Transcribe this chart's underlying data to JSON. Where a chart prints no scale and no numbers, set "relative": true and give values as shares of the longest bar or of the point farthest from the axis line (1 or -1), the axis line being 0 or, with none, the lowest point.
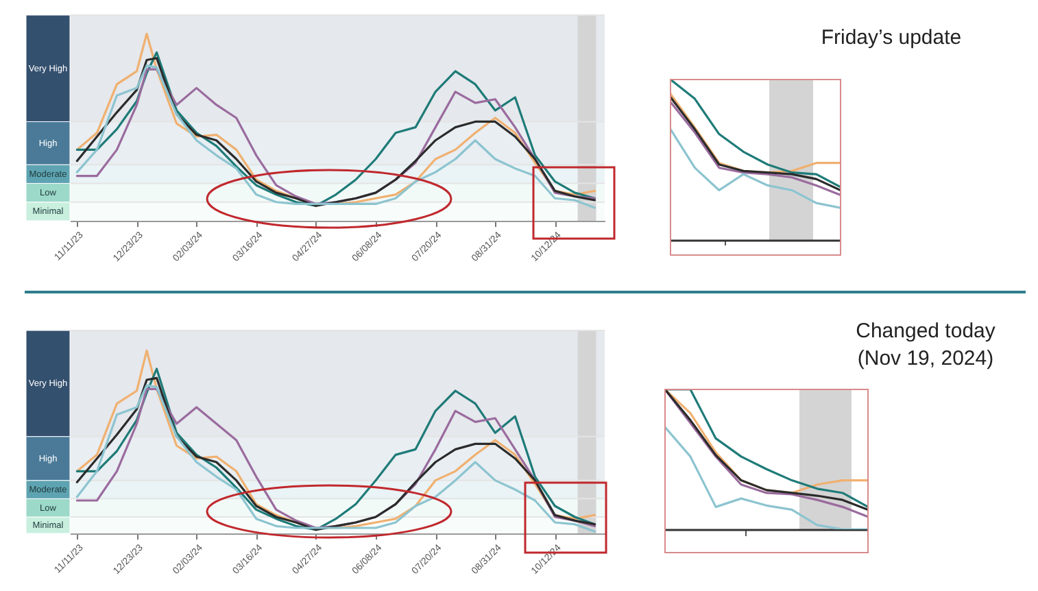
{
  "chart_data": [
    {
      "type": "line",
      "relative": true,
      "x": [
        "2023-11-11",
        "2023-11-25",
        "2023-12-09",
        "2023-12-23",
        "2023-12-30",
        "2024-01-06",
        "2024-01-20",
        "2024-02-03",
        "2024-02-17",
        "2024-03-02",
        "2024-03-16",
        "2024-03-30",
        "2024-04-13",
        "2024-04-27",
        "2024-05-11",
        "2024-05-25",
        "2024-06-08",
        "2024-06-22",
        "2024-07-06",
        "2024-07-20",
        "2024-08-03",
        "2024-08-17",
        "2024-08-31",
        "2024-09-14",
        "2024-09-28",
        "2024-10-12",
        "2024-10-26",
        "2024-11-09"
      ],
      "xlim": [
        "2023-11-06",
        "2024-11-16"
      ],
      "xticks": [
        {
          "value": "2023-11-11",
          "label": "11/11/23"
        },
        {
          "value": "2023-12-23",
          "label": "12/23/23"
        },
        {
          "value": "2024-02-03",
          "label": "02/03/24"
        },
        {
          "value": "2024-03-16",
          "label": "03/16/24"
        },
        {
          "value": "2024-04-27",
          "label": "04/27/24"
        },
        {
          "value": "2024-06-08",
          "label": "06/08/24"
        },
        {
          "value": "2024-07-20",
          "label": "07/20/24"
        },
        {
          "value": "2024-08-31",
          "label": "08/31/24"
        },
        {
          "value": "2024-10-12",
          "label": "10/12/24"
        }
      ],
      "series": [
        {
          "color": "#f0b070",
          "values": [
            0.38,
            0.47,
            0.73,
            0.8,
            1.0,
            0.81,
            0.52,
            0.45,
            0.46,
            0.38,
            0.22,
            0.16,
            0.12,
            0.09,
            0.09,
            0.1,
            0.12,
            0.14,
            0.21,
            0.33,
            0.38,
            0.47,
            0.55,
            0.47,
            0.31,
            0.16,
            0.14,
            0.16
          ]
        },
        {
          "color": "#1e7b78",
          "values": [
            0.38,
            0.38,
            0.49,
            0.64,
            0.79,
            0.9,
            0.59,
            0.47,
            0.4,
            0.29,
            0.19,
            0.14,
            0.1,
            0.08,
            0.14,
            0.22,
            0.33,
            0.47,
            0.5,
            0.69,
            0.8,
            0.73,
            0.59,
            0.66,
            0.35,
            0.21,
            0.15,
            0.12
          ]
        },
        {
          "color": "#9a6b9e",
          "values": [
            0.24,
            0.24,
            0.38,
            0.62,
            0.81,
            0.81,
            0.62,
            0.71,
            0.62,
            0.55,
            0.35,
            0.19,
            0.13,
            0.09,
            0.1,
            0.12,
            0.15,
            0.22,
            0.31,
            0.5,
            0.69,
            0.63,
            0.65,
            0.5,
            0.33,
            0.15,
            0.13,
            0.12
          ]
        },
        {
          "color": "#2b2b2b",
          "values": [
            0.32,
            0.45,
            0.58,
            0.7,
            0.86,
            0.87,
            0.57,
            0.46,
            0.43,
            0.33,
            0.21,
            0.15,
            0.12,
            0.08,
            0.1,
            0.12,
            0.15,
            0.22,
            0.32,
            0.43,
            0.5,
            0.53,
            0.53,
            0.45,
            0.33,
            0.16,
            0.13,
            0.11
          ]
        },
        {
          "color": "#8cc4d0",
          "values": [
            0.26,
            0.38,
            0.67,
            0.71,
            0.83,
            0.82,
            0.57,
            0.43,
            0.35,
            0.28,
            0.14,
            0.1,
            0.09,
            0.09,
            0.09,
            0.09,
            0.09,
            0.12,
            0.21,
            0.26,
            0.33,
            0.43,
            0.33,
            0.28,
            0.24,
            0.12,
            0.11,
            0.07
          ]
        }
      ],
      "bands": [
        {
          "axis": "y",
          "from": 0,
          "to": 0.1,
          "label": "Minimal",
          "color": "#c9efdf"
        },
        {
          "axis": "y",
          "from": 0.1,
          "to": 0.2,
          "label": "Low",
          "color": "#9cd9c9"
        },
        {
          "axis": "y",
          "from": 0.2,
          "to": 0.3,
          "label": "Moderate",
          "color": "#5ea3b1"
        },
        {
          "axis": "y",
          "from": 0.3,
          "to": 0.53,
          "label": "High",
          "color": "#4a7a98"
        },
        {
          "axis": "y",
          "from": 0.53,
          "to": 1.1,
          "label": "Very High",
          "color": "#34506f"
        },
        {
          "axis": "x",
          "from": "2024-10-28",
          "to": "2024-11-10",
          "color": "#d4d4d4"
        }
      ]
    },
    {
      "type": "line",
      "title": "Friday’s update",
      "relative": true,
      "tick_labels": false,
      "categories": [
        null,
        null,
        null,
        null,
        null,
        null,
        null,
        null
      ],
      "series": [
        {
          "color": "#f0b070",
          "values": [
            0.91,
            0.7,
            0.48,
            0.43,
            0.42,
            0.43,
            0.48,
            0.48
          ]
        },
        {
          "color": "#1e7b78",
          "values": [
            1.0,
            0.88,
            0.66,
            0.55,
            0.47,
            0.42,
            0.41,
            0.33
          ]
        },
        {
          "color": "#9a6b9e",
          "values": [
            0.86,
            0.67,
            0.45,
            0.42,
            0.41,
            0.39,
            0.34,
            0.28
          ]
        },
        {
          "color": "#2b2b2b",
          "values": [
            0.89,
            0.69,
            0.47,
            0.43,
            0.42,
            0.41,
            0.38,
            0.31
          ]
        },
        {
          "color": "#8cc4d0",
          "values": [
            0.69,
            0.45,
            0.31,
            0.41,
            0.34,
            0.31,
            0.23,
            0.2
          ]
        }
      ]
    },
    {
      "type": "line",
      "relative": true,
      "x": [
        "2023-11-11",
        "2023-11-25",
        "2023-12-09",
        "2023-12-23",
        "2023-12-30",
        "2024-01-06",
        "2024-01-20",
        "2024-02-03",
        "2024-02-17",
        "2024-03-02",
        "2024-03-16",
        "2024-03-30",
        "2024-04-13",
        "2024-04-27",
        "2024-05-11",
        "2024-05-25",
        "2024-06-08",
        "2024-06-22",
        "2024-07-06",
        "2024-07-20",
        "2024-08-03",
        "2024-08-17",
        "2024-08-31",
        "2024-09-14",
        "2024-09-28",
        "2024-10-12",
        "2024-10-26",
        "2024-11-09"
      ],
      "xlim": [
        "2023-11-06",
        "2024-11-16"
      ],
      "xticks": [
        {
          "value": "2023-11-11",
          "label": "11/11/23"
        },
        {
          "value": "2023-12-23",
          "label": "12/23/23"
        },
        {
          "value": "2024-02-03",
          "label": "02/03/24"
        },
        {
          "value": "2024-03-16",
          "label": "03/16/24"
        },
        {
          "value": "2024-04-27",
          "label": "04/27/24"
        },
        {
          "value": "2024-06-08",
          "label": "06/08/24"
        },
        {
          "value": "2024-07-20",
          "label": "07/20/24"
        },
        {
          "value": "2024-08-31",
          "label": "08/31/24"
        },
        {
          "value": "2024-10-12",
          "label": "10/12/24"
        }
      ],
      "series": [
        {
          "color": "#f0b070",
          "values": [
            0.34,
            0.43,
            0.71,
            0.78,
            1.0,
            0.79,
            0.48,
            0.41,
            0.42,
            0.34,
            0.16,
            0.1,
            0.06,
            0.03,
            0.03,
            0.04,
            0.06,
            0.08,
            0.15,
            0.29,
            0.34,
            0.43,
            0.51,
            0.43,
            0.27,
            0.1,
            0.08,
            0.1
          ]
        },
        {
          "color": "#1e7b78",
          "values": [
            0.34,
            0.34,
            0.45,
            0.62,
            0.77,
            0.9,
            0.55,
            0.43,
            0.36,
            0.25,
            0.13,
            0.08,
            0.04,
            0.02,
            0.08,
            0.16,
            0.29,
            0.43,
            0.46,
            0.67,
            0.78,
            0.71,
            0.55,
            0.64,
            0.31,
            0.15,
            0.09,
            0.05
          ]
        },
        {
          "color": "#9a6b9e",
          "values": [
            0.18,
            0.18,
            0.34,
            0.6,
            0.79,
            0.79,
            0.6,
            0.69,
            0.6,
            0.51,
            0.31,
            0.13,
            0.07,
            0.03,
            0.04,
            0.06,
            0.09,
            0.16,
            0.27,
            0.46,
            0.67,
            0.61,
            0.63,
            0.46,
            0.29,
            0.09,
            0.07,
            0.04
          ]
        },
        {
          "color": "#2b2b2b",
          "values": [
            0.28,
            0.41,
            0.54,
            0.68,
            0.84,
            0.85,
            0.53,
            0.42,
            0.39,
            0.29,
            0.15,
            0.09,
            0.06,
            0.02,
            0.04,
            0.06,
            0.09,
            0.16,
            0.28,
            0.39,
            0.46,
            0.49,
            0.49,
            0.41,
            0.29,
            0.1,
            0.07,
            0.05
          ]
        },
        {
          "color": "#8cc4d0",
          "values": [
            0.2,
            0.34,
            0.65,
            0.69,
            0.81,
            0.8,
            0.53,
            0.39,
            0.31,
            0.24,
            0.08,
            0.04,
            0.03,
            0.03,
            0.03,
            0.03,
            0.03,
            0.06,
            0.15,
            0.2,
            0.29,
            0.39,
            0.29,
            0.24,
            0.18,
            0.06,
            0.05,
            0.01
          ]
        }
      ],
      "bands": [
        {
          "axis": "y",
          "from": 0,
          "to": 0.09,
          "label": "Minimal",
          "color": "#c9efdf"
        },
        {
          "axis": "y",
          "from": 0.09,
          "to": 0.19,
          "label": "Low",
          "color": "#9cd9c9"
        },
        {
          "axis": "y",
          "from": 0.19,
          "to": 0.29,
          "label": "Moderate",
          "color": "#5ea3b1"
        },
        {
          "axis": "y",
          "from": 0.29,
          "to": 0.53,
          "label": "High",
          "color": "#4a7a98"
        },
        {
          "axis": "y",
          "from": 0.53,
          "to": 1.11,
          "label": "Very High",
          "color": "#34506f"
        },
        {
          "axis": "x",
          "from": "2024-10-28",
          "to": "2024-11-10",
          "color": "#d4d4d4"
        }
      ]
    },
    {
      "type": "line",
      "title": "Changed today\n(Nov 19, 2024)",
      "relative": true,
      "tick_labels": false,
      "categories": [
        null,
        null,
        null,
        null,
        null,
        null,
        null,
        null,
        null
      ],
      "series": [
        {
          "color": "#f0b070",
          "values": [
            1.0,
            0.83,
            0.55,
            0.35,
            0.28,
            0.26,
            0.32,
            0.35,
            0.35
          ]
        },
        {
          "color": "#1e7b78",
          "values": [
            1.0,
            1.0,
            0.65,
            0.52,
            0.43,
            0.35,
            0.29,
            0.26,
            0.16
          ]
        },
        {
          "color": "#9a6b9e",
          "values": [
            1.0,
            0.76,
            0.52,
            0.32,
            0.26,
            0.25,
            0.21,
            0.16,
            0.09
          ]
        },
        {
          "color": "#2b2b2b",
          "values": [
            1.0,
            0.78,
            0.53,
            0.35,
            0.28,
            0.26,
            0.24,
            0.21,
            0.14
          ]
        },
        {
          "color": "#8cc4d0",
          "values": [
            0.73,
            0.52,
            0.16,
            0.22,
            0.17,
            0.14,
            0.03,
            0.0,
            0.0
          ]
        }
      ]
    }
  ]
}
